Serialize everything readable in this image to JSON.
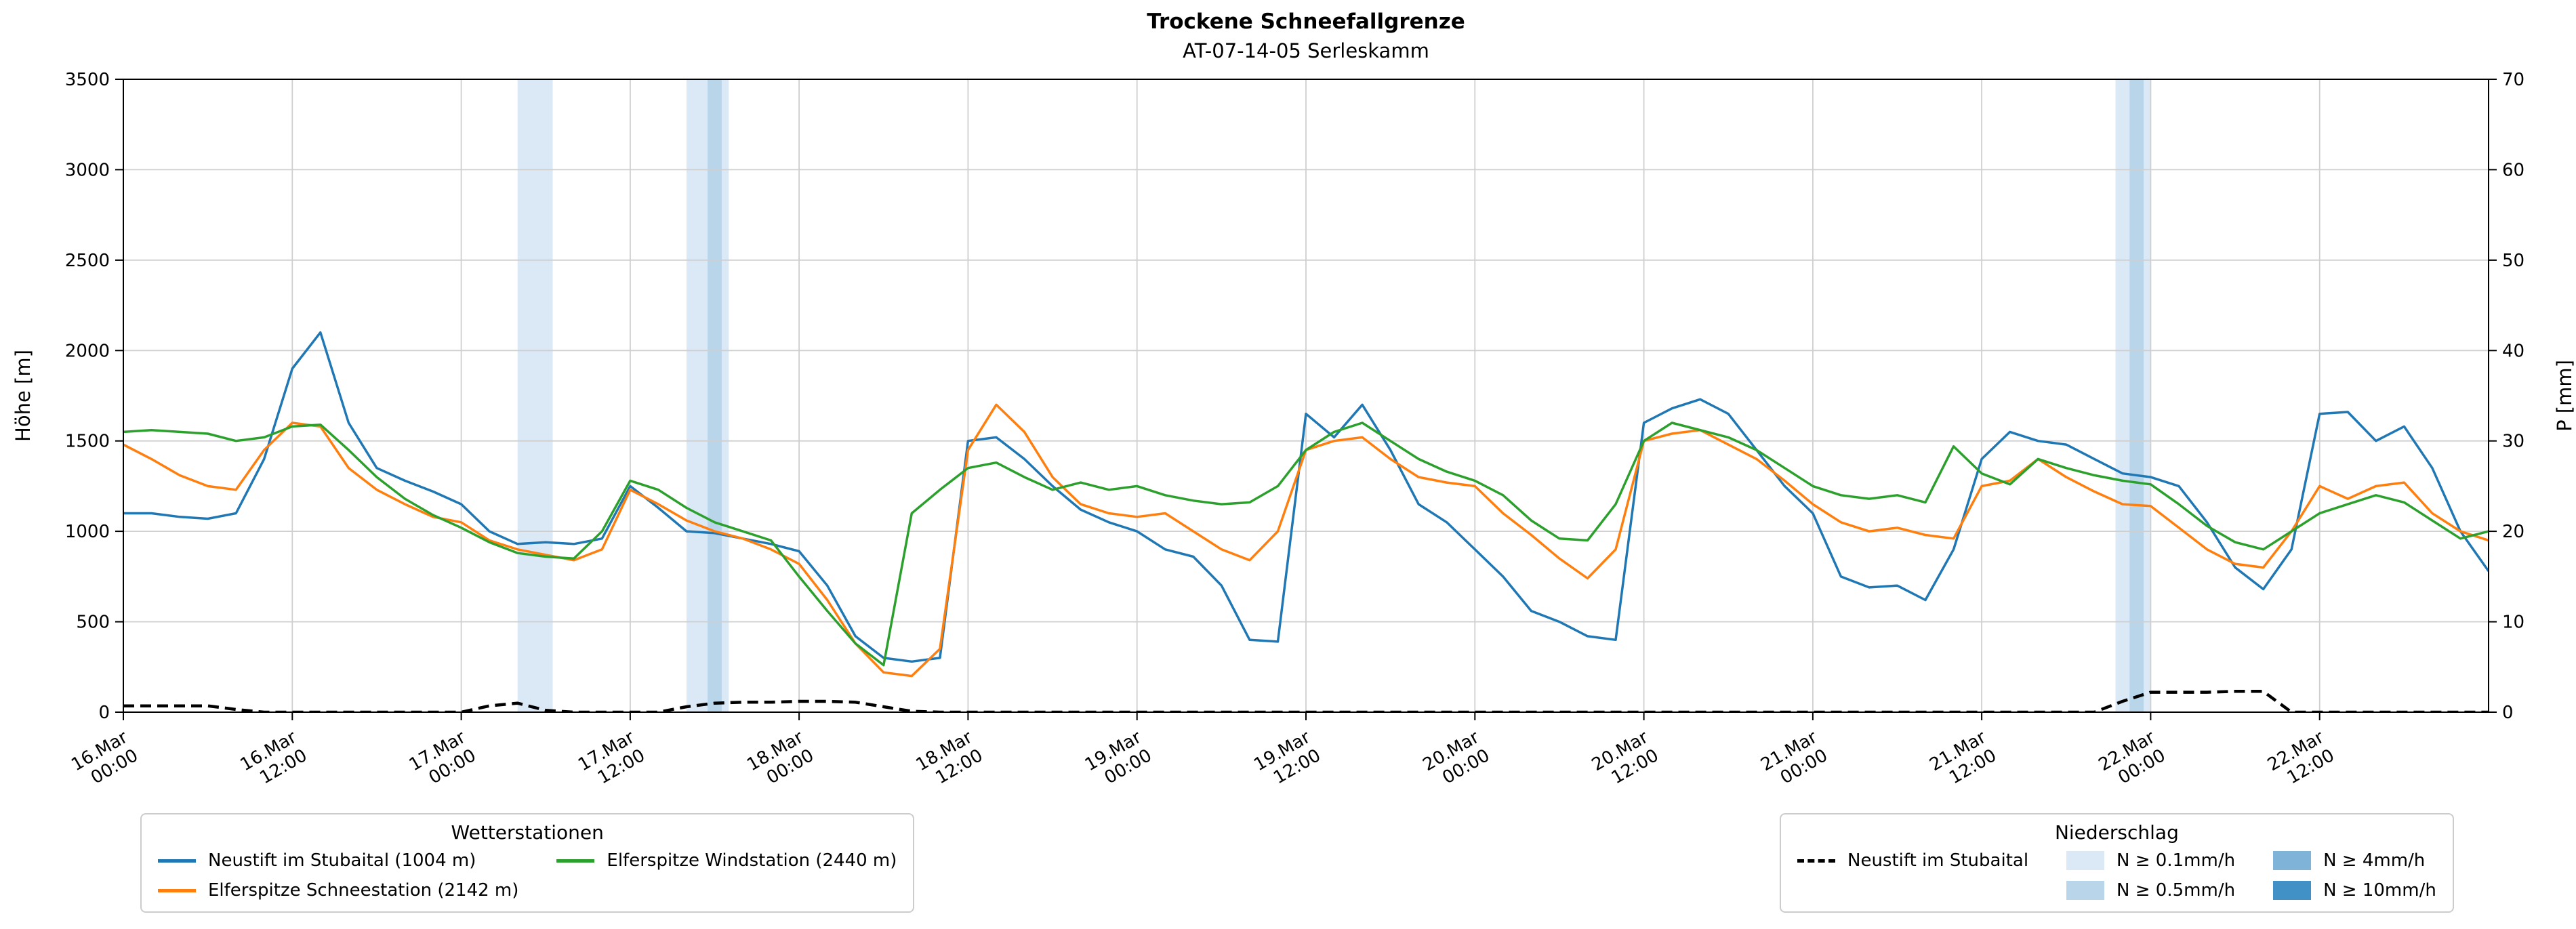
{
  "header": {
    "title": "Trockene Schneefallgrenze",
    "subtitle": "AT-07-14-05 Serleskamm"
  },
  "legends": {
    "weather": {
      "title": "Wetterstationen"
    },
    "precip": {
      "title": "Niederschlag",
      "line_label": "Neustift im Stubaital",
      "levels": [
        {
          "label": "N ≥ 0.1mm/h",
          "level": "0.1"
        },
        {
          "label": "N ≥ 0.5mm/h",
          "level": "0.5"
        },
        {
          "label": "N ≥ 4mm/h",
          "level": "4"
        },
        {
          "label": "N ≥ 10mm/h",
          "level": "10"
        }
      ]
    }
  },
  "chart_data": {
    "type": "line",
    "title": "Trockene Schneefallgrenze",
    "subtitle": "AT-07-14-05 Serleskamm",
    "ylabel_left": "Höhe [m]",
    "ylabel_right": "P [mm]",
    "ylim_left": [
      0,
      3500
    ],
    "ylim_right": [
      0,
      70
    ],
    "y_ticks_left": [
      0,
      500,
      1000,
      1500,
      2000,
      2500,
      3000,
      3500
    ],
    "y_ticks_right": [
      0,
      10,
      20,
      30,
      40,
      50,
      60,
      70
    ],
    "grid": true,
    "x_range": [
      0,
      168
    ],
    "x_step_hours": 2,
    "x_unit": "hours from 16.Mar 00:00",
    "x_ticks": [
      {
        "hour": 0,
        "line1": "16.Mar",
        "line2": "00:00"
      },
      {
        "hour": 12,
        "line1": "16.Mar",
        "line2": "12:00"
      },
      {
        "hour": 24,
        "line1": "17.Mar",
        "line2": "00:00"
      },
      {
        "hour": 36,
        "line1": "17.Mar",
        "line2": "12:00"
      },
      {
        "hour": 48,
        "line1": "18.Mar",
        "line2": "00:00"
      },
      {
        "hour": 60,
        "line1": "18.Mar",
        "line2": "12:00"
      },
      {
        "hour": 72,
        "line1": "19.Mar",
        "line2": "00:00"
      },
      {
        "hour": 84,
        "line1": "19.Mar",
        "line2": "12:00"
      },
      {
        "hour": 96,
        "line1": "20.Mar",
        "line2": "00:00"
      },
      {
        "hour": 108,
        "line1": "20.Mar",
        "line2": "12:00"
      },
      {
        "hour": 120,
        "line1": "21.Mar",
        "line2": "00:00"
      },
      {
        "hour": 132,
        "line1": "21.Mar",
        "line2": "12:00"
      },
      {
        "hour": 144,
        "line1": "22.Mar",
        "line2": "00:00"
      },
      {
        "hour": 156,
        "line1": "22.Mar",
        "line2": "12:00"
      }
    ],
    "series": [
      {
        "name": "Neustift im Stubaital (1004 m)",
        "color": "#1f77b4",
        "axis": "left",
        "values": [
          1100,
          1100,
          1080,
          1070,
          1100,
          1400,
          1900,
          2100,
          1600,
          1350,
          1280,
          1220,
          1150,
          1000,
          930,
          940,
          930,
          960,
          1250,
          1130,
          1000,
          990,
          960,
          930,
          890,
          700,
          420,
          300,
          280,
          300,
          1500,
          1520,
          1400,
          1250,
          1120,
          1050,
          1000,
          900,
          860,
          700,
          400,
          390,
          1650,
          1520,
          1700,
          1450,
          1150,
          1050,
          900,
          750,
          560,
          500,
          420,
          400,
          1600,
          1680,
          1730,
          1650,
          1450,
          1250,
          1100,
          750,
          690,
          700,
          620,
          900,
          1400,
          1550,
          1500,
          1480,
          1400,
          1320,
          1300,
          1250,
          1050,
          800,
          680,
          900,
          1650,
          1660,
          1500,
          1580,
          1350,
          1000,
          780
        ]
      },
      {
        "name": "Elferspitze Schneestation (2142 m)",
        "color": "#ff7f0e",
        "axis": "left",
        "values": [
          1480,
          1400,
          1310,
          1250,
          1230,
          1450,
          1600,
          1580,
          1350,
          1230,
          1150,
          1080,
          1050,
          950,
          900,
          870,
          840,
          900,
          1230,
          1150,
          1060,
          1000,
          960,
          900,
          820,
          620,
          380,
          220,
          200,
          350,
          1450,
          1700,
          1550,
          1300,
          1150,
          1100,
          1080,
          1100,
          1000,
          900,
          840,
          1000,
          1450,
          1500,
          1520,
          1400,
          1300,
          1270,
          1250,
          1100,
          980,
          850,
          740,
          900,
          1500,
          1540,
          1560,
          1480,
          1400,
          1280,
          1150,
          1050,
          1000,
          1020,
          980,
          960,
          1250,
          1280,
          1400,
          1300,
          1220,
          1150,
          1140,
          1020,
          900,
          820,
          800,
          1000,
          1250,
          1180,
          1250,
          1270,
          1100,
          1000,
          950
        ]
      },
      {
        "name": "Elferspitze Windstation (2440 m)",
        "color": "#2ca02c",
        "axis": "left",
        "values": [
          1550,
          1560,
          1550,
          1540,
          1500,
          1520,
          1580,
          1590,
          1450,
          1300,
          1180,
          1090,
          1020,
          940,
          880,
          860,
          850,
          1000,
          1280,
          1230,
          1130,
          1050,
          1000,
          950,
          750,
          560,
          380,
          260,
          1100,
          1230,
          1350,
          1380,
          1300,
          1230,
          1270,
          1230,
          1250,
          1200,
          1170,
          1150,
          1160,
          1250,
          1450,
          1550,
          1600,
          1500,
          1400,
          1330,
          1280,
          1200,
          1060,
          960,
          950,
          1150,
          1500,
          1600,
          1560,
          1520,
          1450,
          1350,
          1250,
          1200,
          1180,
          1200,
          1160,
          1470,
          1320,
          1260,
          1400,
          1350,
          1310,
          1280,
          1260,
          1150,
          1030,
          940,
          900,
          1000,
          1100,
          1150,
          1200,
          1160,
          1060,
          960,
          1000
        ]
      }
    ],
    "precip_line": {
      "name": "Neustift im Stubaital",
      "color": "#000000",
      "style": "dashed",
      "axis": "right",
      "values": [
        0.7,
        0.7,
        0.7,
        0.7,
        0.3,
        0,
        0,
        0,
        0,
        0,
        0,
        0,
        0,
        0.7,
        1.0,
        0.2,
        0,
        0,
        0,
        0,
        0.6,
        1.0,
        1.1,
        1.1,
        1.2,
        1.2,
        1.1,
        0.6,
        0.1,
        0,
        0,
        0,
        0,
        0,
        0,
        0,
        0,
        0,
        0,
        0,
        0,
        0,
        0,
        0,
        0,
        0,
        0,
        0,
        0,
        0,
        0,
        0,
        0,
        0,
        0,
        0,
        0,
        0,
        0,
        0,
        0,
        0,
        0,
        0,
        0,
        0,
        0,
        0,
        0,
        0,
        0,
        1.2,
        2.2,
        2.2,
        2.2,
        2.3,
        2.3,
        0,
        0,
        0,
        0,
        0,
        0,
        0,
        0
      ]
    },
    "precip_bands": [
      {
        "start_hour": 28,
        "end_hour": 30.5,
        "level": "0.1"
      },
      {
        "start_hour": 40,
        "end_hour": 43,
        "level": "0.1"
      },
      {
        "start_hour": 41.5,
        "end_hour": 42.5,
        "level": "0.5"
      },
      {
        "start_hour": 141.5,
        "end_hour": 144,
        "level": "0.1"
      },
      {
        "start_hour": 142.5,
        "end_hour": 143.5,
        "level": "0.5"
      }
    ],
    "band_colors": {
      "0.1": "#dbe9f6",
      "0.5": "#b9d5ea",
      "4": "#7fb3d8",
      "10": "#4191c6"
    },
    "legend_position": "below"
  }
}
